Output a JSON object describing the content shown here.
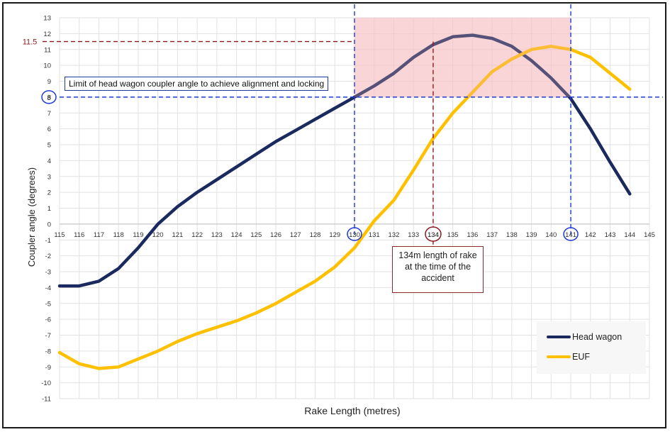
{
  "chart_data": {
    "type": "line",
    "xlabel": "Rake Length (metres)",
    "ylabel": "Coupler angle (degrees)",
    "xlim": [
      115,
      145
    ],
    "ylim": [
      -11,
      13
    ],
    "x_ticks": [
      115,
      116,
      117,
      118,
      119,
      120,
      121,
      122,
      123,
      124,
      125,
      126,
      127,
      128,
      129,
      130,
      131,
      132,
      133,
      134,
      135,
      136,
      137,
      138,
      139,
      140,
      141,
      142,
      143,
      144,
      145
    ],
    "y_ticks": [
      -11,
      -10,
      -9,
      -8,
      -7,
      -6,
      -5,
      -4,
      -3,
      -2,
      -1,
      0,
      1,
      2,
      3,
      4,
      5,
      6,
      7,
      8,
      9,
      10,
      11,
      12,
      13
    ],
    "grid": true,
    "legend_position": "bottom-right",
    "series": [
      {
        "name": "Head wagon",
        "color": "#1a2a5e",
        "x": [
          115,
          116,
          117,
          118,
          119,
          120,
          121,
          122,
          123,
          124,
          125,
          126,
          127,
          128,
          129,
          130,
          131,
          132,
          133,
          134,
          135,
          136,
          137,
          138,
          139,
          140,
          141,
          142,
          143,
          144
        ],
        "y": [
          -3.9,
          -3.9,
          -3.6,
          -2.8,
          -1.5,
          0,
          1.1,
          2.0,
          2.8,
          3.6,
          4.4,
          5.2,
          5.9,
          6.6,
          7.3,
          8.0,
          8.7,
          9.5,
          10.5,
          11.3,
          11.8,
          11.9,
          11.7,
          11.2,
          10.3,
          9.2,
          7.9,
          6.0,
          3.9,
          1.9
        ]
      },
      {
        "name": "EUF",
        "color": "#ffc000",
        "x": [
          115,
          116,
          117,
          118,
          119,
          120,
          121,
          122,
          123,
          124,
          125,
          126,
          127,
          128,
          129,
          130,
          131,
          132,
          133,
          134,
          135,
          136,
          137,
          138,
          139,
          140,
          141,
          142,
          143,
          144
        ],
        "y": [
          -8.1,
          -8.8,
          -9.1,
          -9.0,
          -8.5,
          -8.0,
          -7.4,
          -6.9,
          -6.5,
          -6.1,
          -5.6,
          -5.0,
          -4.3,
          -3.6,
          -2.7,
          -1.5,
          0.2,
          1.5,
          3.4,
          5.4,
          7.0,
          8.3,
          9.6,
          10.4,
          11.0,
          11.2,
          11.0,
          10.5,
          9.5,
          8.5
        ]
      }
    ],
    "annotations": {
      "limit_line_y": 8,
      "limit_label": "Limit of head wagon coupler angle to achieve alignment and locking",
      "limit_circle_label": "8",
      "max_line_y": 11.5,
      "max_label": "11.5",
      "vertical_lines_x": [
        130,
        141
      ],
      "accident_line_x": 134,
      "shaded_region_x": [
        130,
        141
      ],
      "shaded_region_y": [
        8,
        13
      ],
      "callout_text": "134m length of rake at the time of the accident"
    }
  }
}
